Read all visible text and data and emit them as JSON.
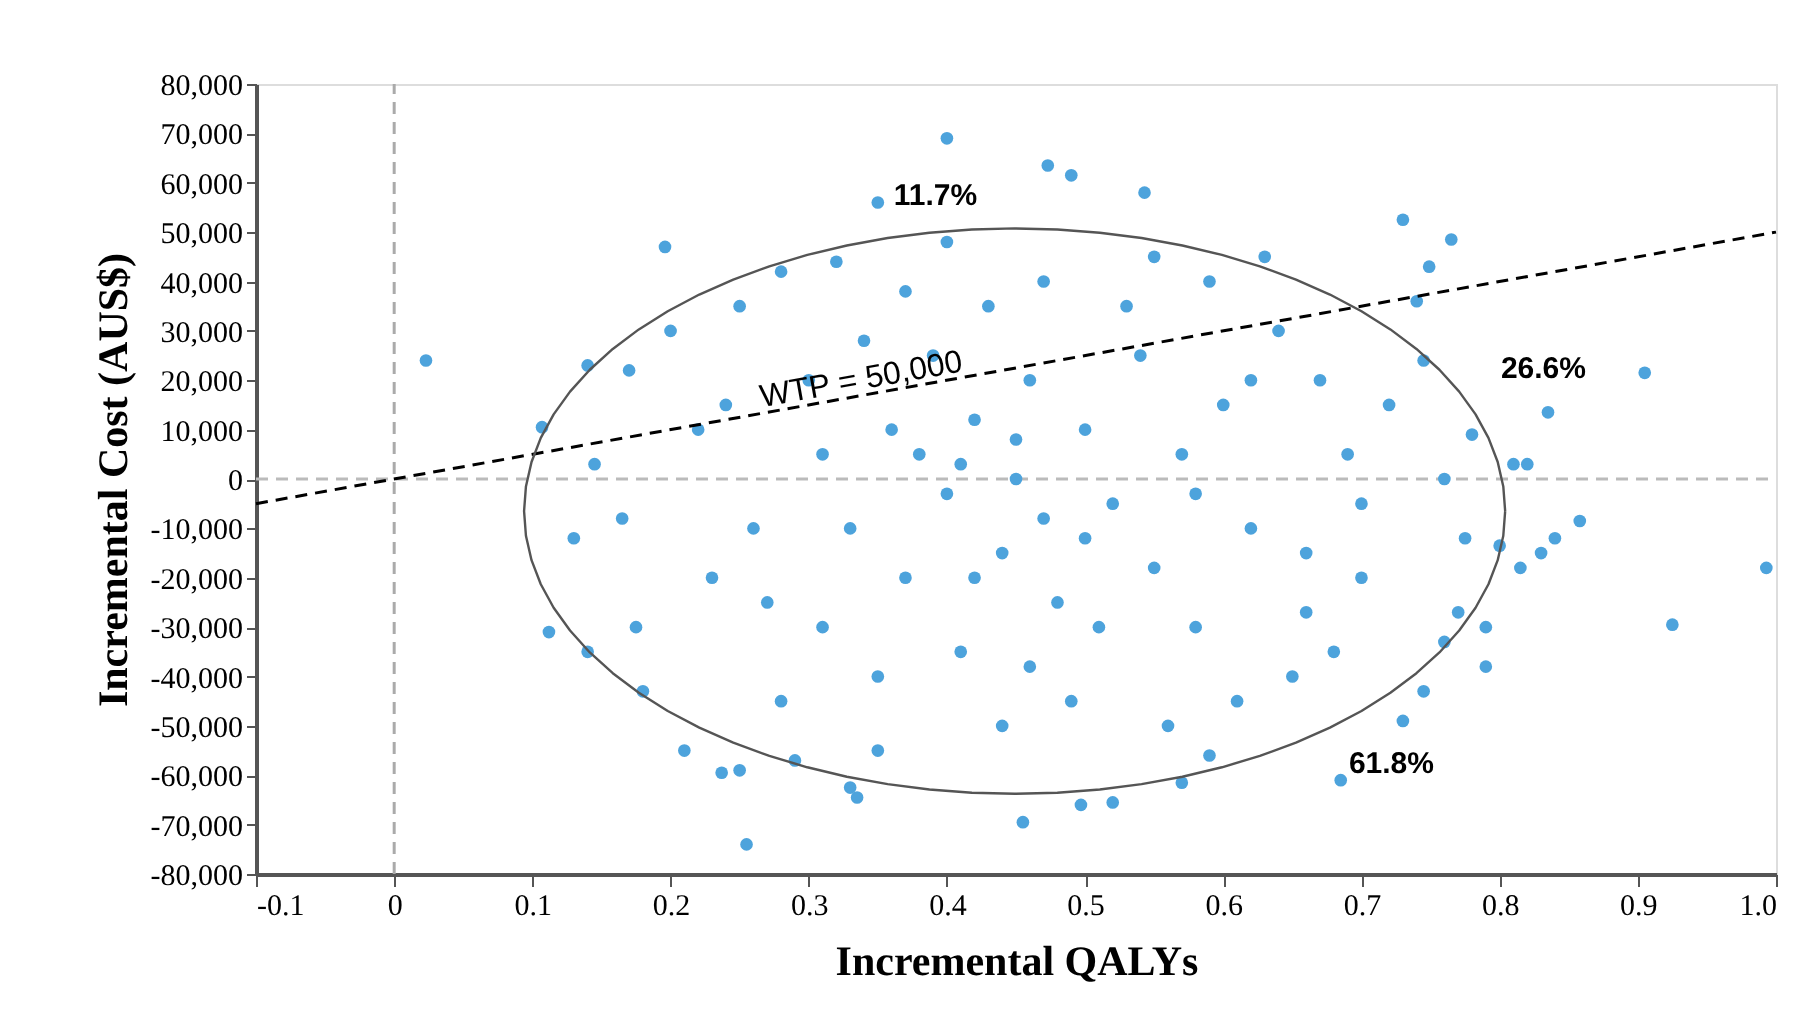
{
  "chart_data": {
    "type": "scatter",
    "xlabel": "Incremental QALYs",
    "ylabel": "Incremental Cost (AUS$)",
    "xlim": [
      -0.1,
      1.0
    ],
    "ylim": [
      -80000,
      80000
    ],
    "xticks": [
      -0.1,
      {
        "value": 0,
        "label": "0"
      },
      0.1,
      0.2,
      0.3,
      0.4,
      0.5,
      0.6,
      0.7,
      0.8,
      0.9,
      {
        "value": 1,
        "label": "1.0"
      }
    ],
    "yticks": [
      {
        "value": -80000,
        "label": "-80,000"
      },
      {
        "value": -70000,
        "label": "-70,000"
      },
      {
        "value": -60000,
        "label": "-60,000"
      },
      {
        "value": -50000,
        "label": "-50,000"
      },
      {
        "value": -40000,
        "label": "-40,000"
      },
      {
        "value": -30000,
        "label": "-30,000"
      },
      {
        "value": -20000,
        "label": "-20,000"
      },
      {
        "value": -10000,
        "label": "-10,000"
      },
      0,
      {
        "value": 10000,
        "label": "10,000"
      },
      {
        "value": 20000,
        "label": "20,000"
      },
      {
        "value": 30000,
        "label": "30,000"
      },
      {
        "value": 40000,
        "label": "40,000"
      },
      {
        "value": 50000,
        "label": "50,000"
      },
      {
        "value": 60000,
        "label": "60,000"
      },
      {
        "value": 70000,
        "label": "70,000"
      },
      {
        "value": 80000,
        "label": "80,000"
      }
    ],
    "grid": false,
    "series": [
      {
        "color": "#4da3dc",
        "marker": "circle",
        "x": [
          0.023,
          0.4,
          0.473,
          0.49,
          0.543,
          0.993,
          0.925,
          0.905,
          0.255,
          0.455,
          0.685,
          0.497,
          0.52,
          0.33,
          0.237,
          0.25,
          0.57,
          0.35,
          0.335,
          0.196,
          0.73,
          0.765,
          0.749,
          0.59,
          0.858,
          0.835,
          0.81,
          0.82,
          0.8,
          0.79,
          0.79,
          0.77,
          0.745,
          0.73,
          0.76,
          0.775,
          0.83,
          0.84,
          0.815,
          0.76,
          0.745,
          0.74,
          0.78,
          0.72,
          0.7,
          0.7,
          0.68,
          0.66,
          0.107,
          0.112,
          0.14,
          0.14,
          0.145,
          0.13,
          0.17,
          0.175,
          0.18,
          0.165,
          0.2,
          0.21,
          0.22,
          0.23,
          0.25,
          0.26,
          0.28,
          0.28,
          0.3,
          0.31,
          0.32,
          0.33,
          0.29,
          0.35,
          0.38,
          0.4,
          0.42,
          0.44,
          0.45,
          0.46,
          0.47,
          0.48,
          0.5,
          0.52,
          0.54,
          0.55,
          0.57,
          0.58,
          0.6,
          0.62,
          0.64,
          0.65,
          0.43,
          0.41,
          0.39,
          0.37,
          0.36,
          0.35,
          0.47,
          0.49,
          0.53,
          0.56,
          0.59,
          0.61,
          0.63,
          0.67,
          0.69,
          0.66,
          0.34,
          0.31,
          0.27,
          0.24,
          0.44,
          0.4,
          0.51,
          0.58,
          0.42,
          0.46,
          0.37,
          0.55,
          0.62,
          0.5,
          0.45,
          0.41
        ],
        "values": [
          24000,
          69000,
          63500,
          61500,
          58000,
          -18000,
          -29500,
          21500,
          -74000,
          -69500,
          -61000,
          -66000,
          -65500,
          -62500,
          -59500,
          -59000,
          -61500,
          56000,
          -64500,
          47000,
          52500,
          48500,
          43000,
          -56000,
          -8500,
          13500,
          3000,
          3000,
          -13500,
          -30000,
          -38000,
          -27000,
          -43000,
          -49000,
          -33000,
          -12000,
          -15000,
          -12000,
          -18000,
          0,
          24000,
          36000,
          9000,
          15000,
          -5000,
          -20000,
          -35000,
          -27000,
          10500,
          -31000,
          23000,
          -35000,
          3000,
          -12000,
          22000,
          -30000,
          -43000,
          -8000,
          30000,
          -55000,
          10000,
          -20000,
          35000,
          -10000,
          42000,
          -45000,
          20000,
          -30000,
          44000,
          -10000,
          -57000,
          -55000,
          5000,
          -3000,
          12000,
          -15000,
          0,
          20000,
          -8000,
          -25000,
          10000,
          -5000,
          25000,
          -18000,
          5000,
          -30000,
          15000,
          -10000,
          30000,
          -40000,
          35000,
          -35000,
          25000,
          -20000,
          10000,
          -40000,
          40000,
          -45000,
          35000,
          -50000,
          40000,
          -45000,
          45000,
          20000,
          5000,
          -15000,
          28000,
          5000,
          -25000,
          15000,
          -50000,
          48000,
          -30000,
          -3000,
          -20000,
          -38000,
          38000,
          45000,
          20000,
          -12000,
          8000,
          3000
        ]
      },
      {
        "type": "line",
        "color": "#000000",
        "line_style": "dashed",
        "marker": "none",
        "x": [
          -0.1,
          1.0
        ],
        "values": [
          -5000,
          50000
        ]
      }
    ],
    "ref_lines": [
      {
        "axis": "x",
        "value": 0,
        "color": "#aaaaaa",
        "line_style": "dashed"
      },
      {
        "axis": "y",
        "value": 0,
        "color": "#bbbbbb",
        "line_style": "dashed"
      }
    ],
    "annotations": [
      {
        "text": "WTP = 50,000",
        "x": 0.34,
        "y": 17000
      },
      "11.7%",
      "26.6%",
      "61.8%"
    ]
  }
}
